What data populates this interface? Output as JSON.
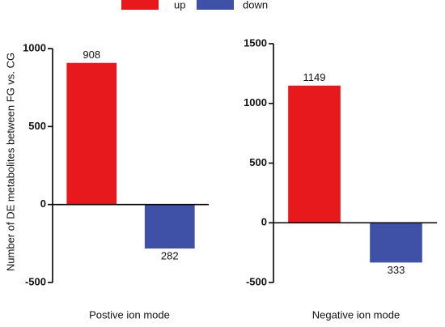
{
  "chart_data": [
    {
      "type": "bar",
      "ylabel": "Number of DE metabolites between FG vs. CG",
      "xlabel": "Postive ion mode",
      "series": [
        {
          "name": "up",
          "color": "#e8191c",
          "values": [
            908
          ]
        },
        {
          "name": "down",
          "color": "#3f51a7",
          "values": [
            -282
          ],
          "value_labels": [
            "282"
          ]
        }
      ],
      "ylim": [
        -500,
        1000
      ],
      "yticks": [
        -500,
        0,
        500,
        1000
      ]
    },
    {
      "type": "bar",
      "xlabel": "Negative ion mode",
      "series": [
        {
          "color": "#e8191c",
          "values": [
            1149
          ]
        },
        {
          "color": "#3f51a7",
          "values": [
            -333
          ],
          "value_labels": [
            "333"
          ]
        }
      ],
      "ylim": [
        -500,
        1500
      ],
      "yticks": [
        -500,
        0,
        500,
        1000,
        1500
      ]
    }
  ]
}
